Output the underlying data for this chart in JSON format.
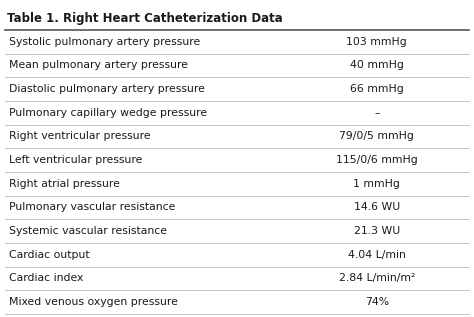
{
  "title": "Table 1. Right Heart Catheterization Data",
  "rows": [
    [
      "Systolic pulmonary artery pressure",
      "103 mmHg"
    ],
    [
      "Mean pulmonary artery pressure",
      "40 mmHg"
    ],
    [
      "Diastolic pulmonary artery pressure",
      "66 mmHg"
    ],
    [
      "Pulmonary capillary wedge pressure",
      "–"
    ],
    [
      "Right ventricular pressure",
      "79/0/5 mmHg"
    ],
    [
      "Left ventricular pressure",
      "115/0/6 mmHg"
    ],
    [
      "Right atrial pressure",
      "1 mmHg"
    ],
    [
      "Pulmonary vascular resistance",
      "14.6 WU"
    ],
    [
      "Systemic vascular resistance",
      "21.3 WU"
    ],
    [
      "Cardiac output",
      "4.04 L/min"
    ],
    [
      "Cardiac index",
      "2.84 L/min/m²"
    ],
    [
      "Mixed venous oxygen pressure",
      "74%"
    ]
  ],
  "title_fontsize": 8.5,
  "row_fontsize": 7.8,
  "bg_color": "#ffffff",
  "line_color": "#bbbbbb",
  "text_color": "#1a1a1a",
  "col_split": 0.6,
  "fig_width": 4.74,
  "fig_height": 3.17,
  "dpi": 100
}
